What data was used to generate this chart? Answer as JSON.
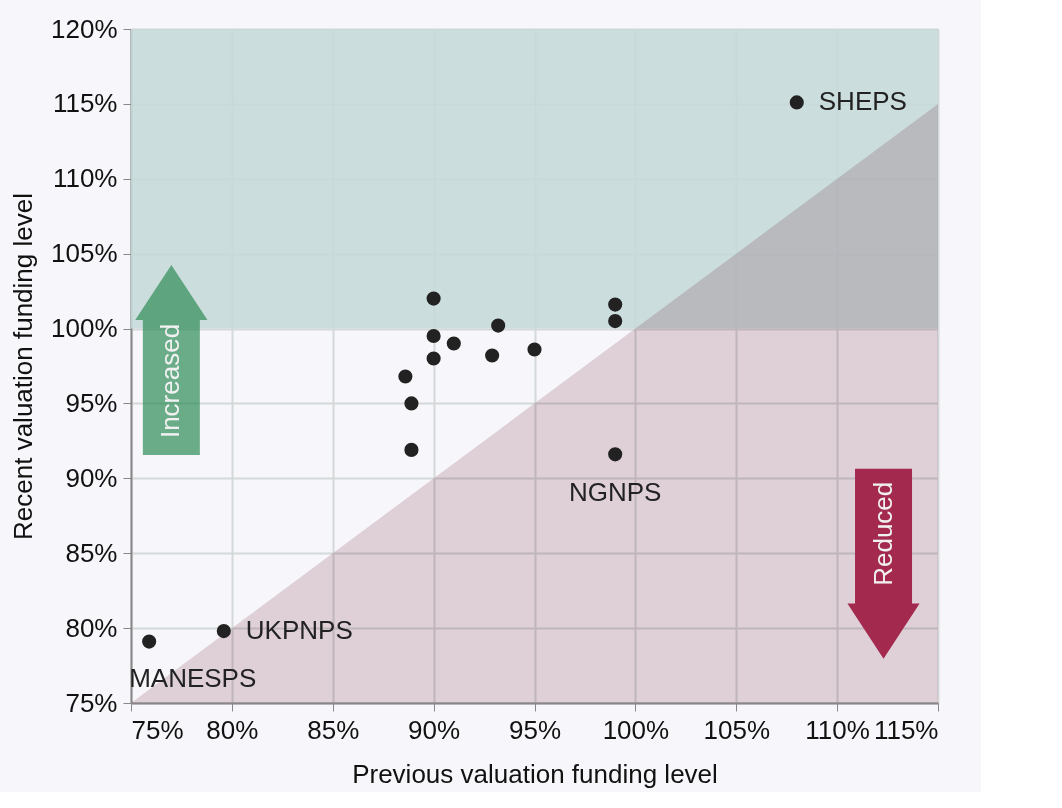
{
  "chart_data": {
    "type": "scatter",
    "xlabel": "Previous valuation funding level",
    "ylabel": "Recent valuation funding level",
    "xlim": [
      75,
      115
    ],
    "ylim": [
      75,
      120
    ],
    "xticks": [
      {
        "value": 75,
        "label": "75%"
      },
      {
        "value": 80,
        "label": "80%"
      },
      {
        "value": 85,
        "label": "85%"
      },
      {
        "value": 90,
        "label": "90%"
      },
      {
        "value": 95,
        "label": "95%"
      },
      {
        "value": 100,
        "label": "100%"
      },
      {
        "value": 105,
        "label": "105%"
      },
      {
        "value": 110,
        "label": "110%"
      },
      {
        "value": 115,
        "label": "115%"
      }
    ],
    "yticks": [
      {
        "value": 75,
        "label": "75%"
      },
      {
        "value": 80,
        "label": "80%"
      },
      {
        "value": 85,
        "label": "85%"
      },
      {
        "value": 90,
        "label": "90%"
      },
      {
        "value": 95,
        "label": "95%"
      },
      {
        "value": 100,
        "label": "100%"
      },
      {
        "value": 105,
        "label": "105%"
      },
      {
        "value": 110,
        "label": "110%"
      },
      {
        "value": 115,
        "label": "115%"
      },
      {
        "value": 120,
        "label": "120%"
      }
    ],
    "grid": true,
    "series": [
      {
        "type": "area",
        "color": "#e3d0d6",
        "x": [
          75,
          115
        ],
        "values": [
          75,
          115
        ]
      },
      {
        "marker": "circle",
        "color": "#222222",
        "x": [
          108,
          90,
          99,
          99,
          93.2,
          90,
          91,
          90,
          92.9,
          95,
          88.6,
          88.9,
          88.9,
          99,
          79.6,
          75.9
        ],
        "values": [
          115.1,
          102,
          101.6,
          100.5,
          100.2,
          99.5,
          99,
          98,
          98.2,
          98.6,
          96.8,
          95,
          91.9,
          91.6,
          79.8,
          79.1
        ]
      }
    ],
    "bands": [
      {
        "axis": "y",
        "from": 100,
        "to": 120,
        "color": "#c5d9d9"
      }
    ],
    "annotations": [
      {
        "text": "SHEPS",
        "x": 108,
        "y": 115.1
      },
      {
        "text": "NGNPS",
        "x": 99,
        "y": 91.6
      },
      {
        "text": "UKPNPS",
        "x": 79.6,
        "y": 79.8
      },
      {
        "text": "MANESPS",
        "x": 75.9,
        "y": 79.1
      },
      "Increased",
      "Reduced"
    ]
  }
}
